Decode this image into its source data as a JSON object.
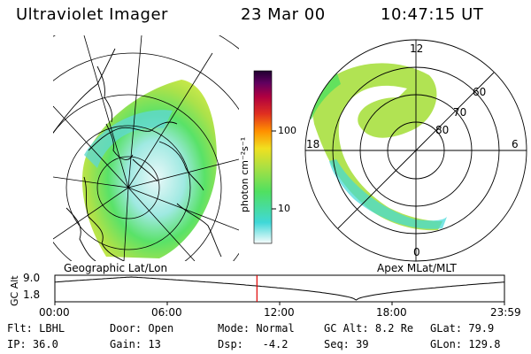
{
  "header": {
    "title": "Ultraviolet Imager",
    "date": "23 Mar 00",
    "time": "10:47:15 UT"
  },
  "left_panel": {
    "caption": "Geographic Lat/Lon"
  },
  "right_panel": {
    "caption": "Apex MLat/MLT",
    "mlt_labels": {
      "top": "12",
      "left": "18",
      "right": "6",
      "bottom": "0"
    },
    "lat_labels": [
      "60",
      "70",
      "80"
    ]
  },
  "colorbar": {
    "unit_label": "photon cm⁻²s⁻¹",
    "ticks": [
      "100",
      "10"
    ],
    "colors": [
      "#e8f8f8",
      "#40d8d8",
      "#50e060",
      "#b0e040",
      "#f0e020",
      "#ff9000",
      "#e03020",
      "#b00040",
      "#600060",
      "#200030"
    ]
  },
  "timeline": {
    "axis_label": "GC Alt",
    "y_top": "9.0",
    "y_bottom": "1.8",
    "x_ticks": [
      "00:00",
      "06:00",
      "12:00",
      "18:00",
      "23:59"
    ],
    "marker_color": "#e00000"
  },
  "info": {
    "flt_label": "Flt:",
    "flt_value": "LBHL",
    "ip_label": "IP:",
    "ip_value": "36.0",
    "door_label": "Door:",
    "door_value": "Open",
    "gain_label": "Gain:",
    "gain_value": "13",
    "mode_label": "Mode:",
    "mode_value": "Normal",
    "dsp_label": "Dsp:",
    "dsp_value": "-4.2",
    "gcalt_label": "GC Alt:",
    "gcalt_value": "8.2 Re",
    "seq_label": "Seq:",
    "seq_value": "39",
    "glat_label": "GLat:",
    "glat_value": "79.9",
    "glon_label": "GLon:",
    "glon_value": "129.8"
  }
}
